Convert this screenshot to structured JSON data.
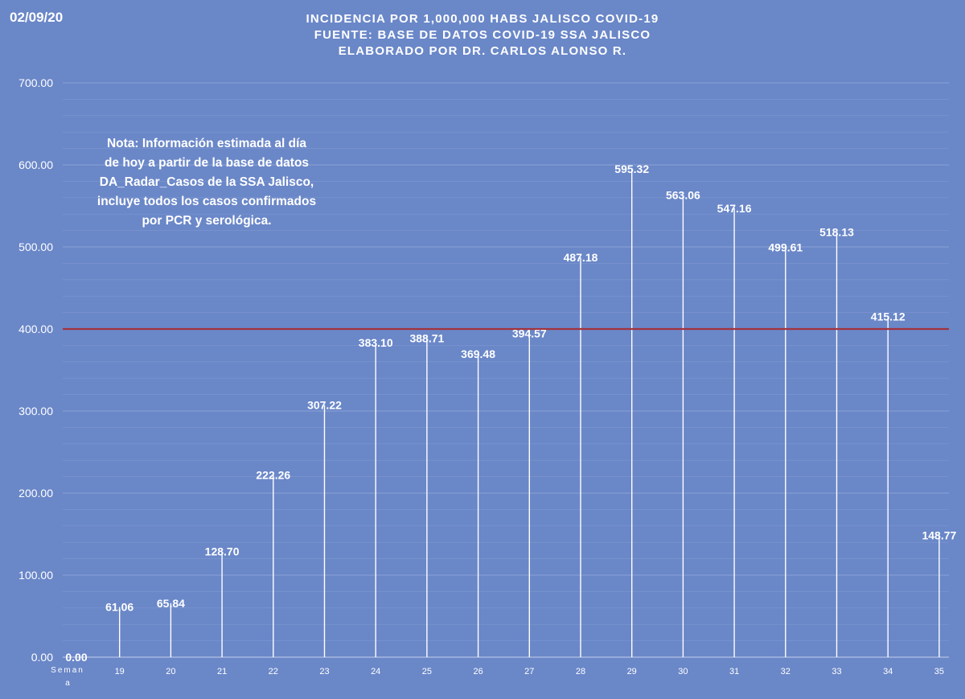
{
  "header": {
    "date": "02/09/20",
    "title_lines": [
      "INCIDENCIA POR 1,000,000 HABS JALISCO COVID-19",
      "FUENTE: BASE DE DATOS COVID-19 SSA JALISCO",
      "ELABORADO POR DR. CARLOS ALONSO R."
    ]
  },
  "note": {
    "lines": [
      "Nota: Información estimada al día",
      "de hoy a partir de la base de datos",
      "DA_Radar_Casos de la SSA Jalisco,",
      "incluye todos los casos confirmados",
      "por PCR y serológica."
    ]
  },
  "colors": {
    "background": "#6a87c8",
    "gridline": "#8fa5d6",
    "bar_line": "#ffffff",
    "reference_line": "#a3333d",
    "text": "#ffffff"
  },
  "chart_data": {
    "type": "bar",
    "title": "INCIDENCIA POR 1,000,000 HABS JALISCO COVID-19",
    "xlabel": "Semana",
    "ylabel": "",
    "ylim": [
      0,
      700
    ],
    "yticks": [
      "0.00",
      "100.00",
      "200.00",
      "300.00",
      "400.00",
      "500.00",
      "600.00",
      "700.00"
    ],
    "grid": true,
    "categories": [
      "",
      "19",
      "20",
      "21",
      "22",
      "23",
      "24",
      "25",
      "26",
      "27",
      "28",
      "29",
      "30",
      "31",
      "32",
      "33",
      "34",
      "35"
    ],
    "values": [
      0,
      61.06,
      65.84,
      128.7,
      222.26,
      307.22,
      383.1,
      388.71,
      369.48,
      394.57,
      487.18,
      595.32,
      563.06,
      547.16,
      499.61,
      518.13,
      415.12,
      148.77
    ],
    "data_labels": [
      "0.00",
      "61.06",
      "65.84",
      "128.70",
      "222.26",
      "307.22",
      "383.10",
      "388.71",
      "369.48",
      "394.57",
      "487.18",
      "595.32",
      "563.06",
      "547.16",
      "499.61",
      "518.13",
      "415.12",
      "148.77"
    ],
    "reference_line": {
      "value": 400
    }
  }
}
